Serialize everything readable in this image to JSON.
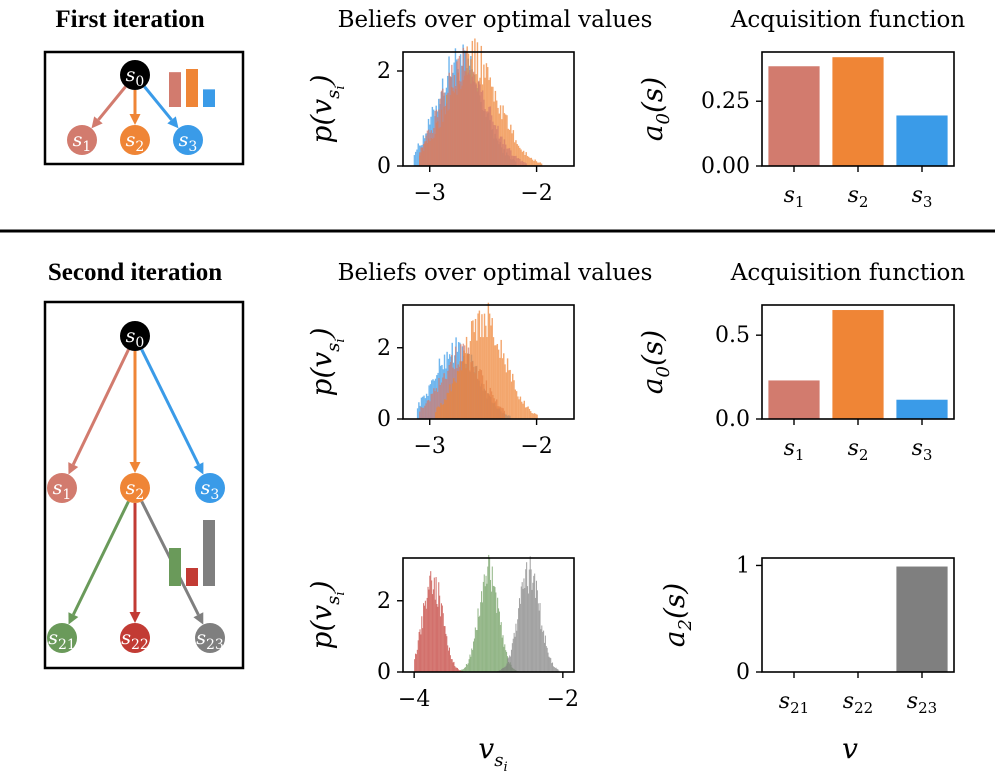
{
  "colors": {
    "s1": "#d27b6e",
    "s2": "#ef8536",
    "s3": "#3a9be8",
    "s21": "#6a9a5a",
    "s22": "#c23b34",
    "s23": "#7f7f7f",
    "root": "#000000"
  },
  "row1": {
    "title": "First iteration",
    "tree": {
      "root": {
        "base": "s",
        "sub": "0"
      },
      "children": [
        {
          "key": "s1",
          "base": "s",
          "sub": "1"
        },
        {
          "key": "s2",
          "base": "s",
          "sub": "2"
        },
        {
          "key": "s3",
          "base": "s",
          "sub": "3"
        }
      ]
    }
  },
  "row2": {
    "title": "Second iteration",
    "tree": {
      "root": {
        "base": "s",
        "sub": "0"
      },
      "children": [
        {
          "key": "s1",
          "base": "s",
          "sub": "1"
        },
        {
          "key": "s2",
          "base": "s",
          "sub": "2"
        },
        {
          "key": "s3",
          "base": "s",
          "sub": "3"
        }
      ],
      "grandchildren": [
        {
          "key": "s21",
          "base": "s",
          "sub": "21"
        },
        {
          "key": "s22",
          "base": "s",
          "sub": "22"
        },
        {
          "key": "s23",
          "base": "s",
          "sub": "23"
        }
      ]
    }
  },
  "chart_data": [
    {
      "id": "hist1",
      "type": "histogram",
      "title": "Beliefs over optimal values",
      "ylabel": "p(v_si)",
      "xlim": [
        -3.25,
        -1.65
      ],
      "ylim": [
        0,
        2.4
      ],
      "xticks": [
        -3,
        -2
      ],
      "yticks": [
        0,
        2
      ],
      "xtick_labels": [
        "−3",
        "−2"
      ],
      "ytick_labels": [
        "0",
        "2"
      ],
      "series": [
        {
          "key": "s3",
          "mean": -2.72,
          "sd": 0.21,
          "peak": 2.2,
          "range": [
            -3.15,
            -2.2
          ]
        },
        {
          "key": "s2",
          "mean": -2.6,
          "sd": 0.24,
          "peak": 2.25,
          "range": [
            -3.1,
            -1.95
          ]
        },
        {
          "key": "s1",
          "mean": -2.68,
          "sd": 0.22,
          "peak": 2.1,
          "range": [
            -3.1,
            -2.1
          ]
        }
      ]
    },
    {
      "id": "bar1",
      "type": "bar",
      "title": "Acquisition function",
      "ylabel": "a_0(s)",
      "ylim": [
        0,
        0.44
      ],
      "yticks": [
        0,
        0.25
      ],
      "ytick_labels": [
        "0.00",
        "0.25"
      ],
      "categories": [
        {
          "key": "s1",
          "base": "s",
          "sub": "1"
        },
        {
          "key": "s2",
          "base": "s",
          "sub": "2"
        },
        {
          "key": "s3",
          "base": "s",
          "sub": "3"
        }
      ],
      "values": [
        0.385,
        0.42,
        0.195
      ]
    },
    {
      "id": "hist2",
      "type": "histogram",
      "title": "Beliefs over optimal values",
      "ylabel": "p(v_si)",
      "xlim": [
        -3.25,
        -1.65
      ],
      "ylim": [
        0,
        3.2
      ],
      "xticks": [
        -3,
        -2
      ],
      "yticks": [
        0,
        2
      ],
      "xtick_labels": [
        "−3",
        "−2"
      ],
      "ytick_labels": [
        "0",
        "2"
      ],
      "series": [
        {
          "key": "s3",
          "mean": -2.75,
          "sd": 0.2,
          "peak": 1.95,
          "range": [
            -3.12,
            -2.25
          ]
        },
        {
          "key": "s1",
          "mean": -2.7,
          "sd": 0.2,
          "peak": 1.8,
          "range": [
            -3.1,
            -2.3
          ]
        },
        {
          "key": "s2",
          "mean": -2.5,
          "sd": 0.2,
          "peak": 2.8,
          "range": [
            -2.95,
            -2.0
          ]
        }
      ]
    },
    {
      "id": "bar2",
      "type": "bar",
      "title": "Acquisition function",
      "ylabel": "a_0(s)",
      "ylim": [
        0,
        0.68
      ],
      "yticks": [
        0,
        0.5
      ],
      "ytick_labels": [
        "0.0",
        "0.5"
      ],
      "categories": [
        {
          "key": "s1",
          "base": "s",
          "sub": "1"
        },
        {
          "key": "s2",
          "base": "s",
          "sub": "2"
        },
        {
          "key": "s3",
          "base": "s",
          "sub": "3"
        }
      ],
      "values": [
        0.23,
        0.65,
        0.115
      ]
    },
    {
      "id": "hist3",
      "type": "histogram",
      "title": "",
      "ylabel": "p(v_si)",
      "xlabel": "v_si",
      "xlim": [
        -4.15,
        -1.85
      ],
      "ylim": [
        0,
        3.2
      ],
      "xticks": [
        -4,
        -2
      ],
      "yticks": [
        0,
        2
      ],
      "xtick_labels": [
        "−4",
        "−2"
      ],
      "ytick_labels": [
        "0",
        "2"
      ],
      "series": [
        {
          "key": "s21",
          "mean": -3.0,
          "sd": 0.13,
          "peak": 2.75,
          "range": [
            -3.4,
            -2.6
          ]
        },
        {
          "key": "s22",
          "mean": -3.75,
          "sd": 0.13,
          "peak": 2.6,
          "range": [
            -4.0,
            -3.3
          ]
        },
        {
          "key": "s23",
          "mean": -2.45,
          "sd": 0.14,
          "peak": 2.75,
          "range": [
            -2.95,
            -2.05
          ]
        }
      ]
    },
    {
      "id": "bar3",
      "type": "bar",
      "title": "",
      "ylabel": "a_2(s)",
      "xlabel": "v",
      "ylim": [
        0,
        1.07
      ],
      "yticks": [
        0,
        1
      ],
      "ytick_labels": [
        "0",
        "1"
      ],
      "categories": [
        {
          "key": "s21",
          "base": "s",
          "sub": "21"
        },
        {
          "key": "s22",
          "base": "s",
          "sub": "22"
        },
        {
          "key": "s23",
          "base": "s",
          "sub": "23"
        }
      ],
      "values": [
        0,
        0,
        0.99
      ]
    }
  ]
}
